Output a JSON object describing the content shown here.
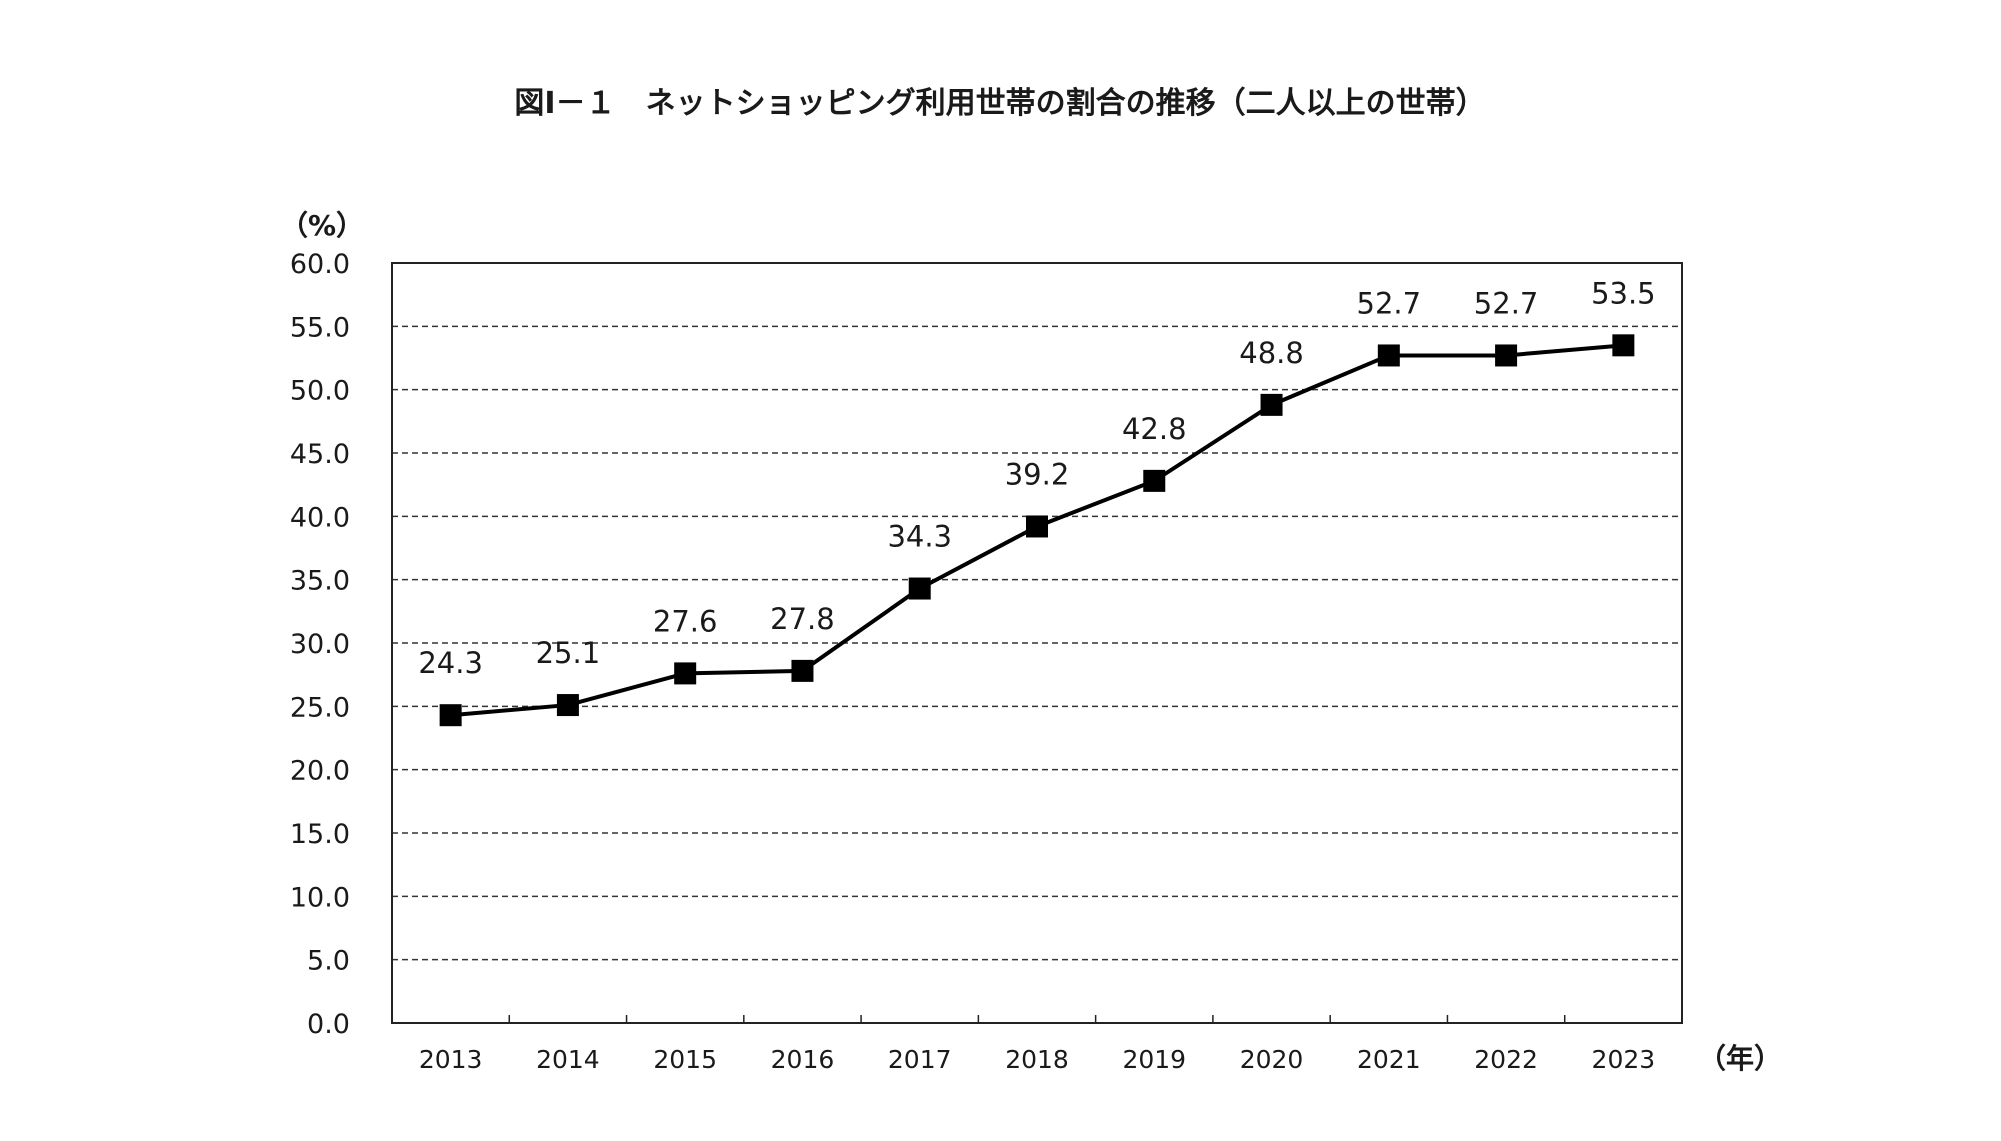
{
  "chart_data": {
    "type": "line",
    "title": "図Ⅰ－１　ネットショッピング利用世帯の割合の推移（二人以上の世帯）",
    "ylabel": "（%）",
    "xlabel": "（年）",
    "categories": [
      "2013",
      "2014",
      "2015",
      "2016",
      "2017",
      "2018",
      "2019",
      "2020",
      "2021",
      "2022",
      "2023"
    ],
    "series": [
      {
        "values": [
          24.3,
          25.1,
          27.6,
          27.8,
          34.3,
          39.2,
          42.8,
          48.8,
          52.7,
          52.7,
          53.5
        ],
        "labels": [
          "24.3",
          "25.1",
          "27.6",
          "27.8",
          "34.3",
          "39.2",
          "42.8",
          "48.8",
          "52.7",
          "52.7",
          "53.5"
        ],
        "color": "#000000",
        "marker": "square"
      }
    ],
    "ylim": [
      0,
      60
    ],
    "yticks": [
      "0.0",
      "5.0",
      "10.0",
      "15.0",
      "20.0",
      "25.0",
      "30.0",
      "35.0",
      "40.0",
      "45.0",
      "50.0",
      "55.0",
      "60.0"
    ],
    "grid": "dashed horizontal",
    "legend": "none"
  }
}
